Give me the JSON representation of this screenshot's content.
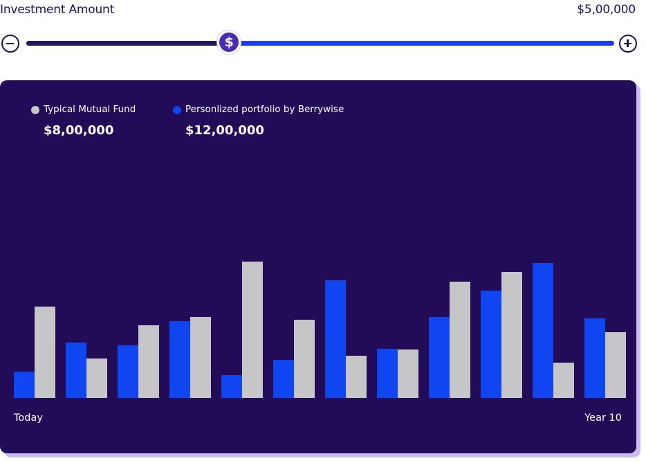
{
  "header": {
    "title": "Investment Amount",
    "amount": "$5,00,000"
  },
  "slider": {
    "thumb_symbol": "$",
    "position_fraction": 0.345,
    "fill_color": "#23175a",
    "track_color": "#1b3df0",
    "thumb_color": "#4b2bb3"
  },
  "legend": {
    "typical": {
      "label": "Typical Mutual Fund",
      "value": "$8,00,000",
      "color": "#c6c5c8"
    },
    "personalized": {
      "label": "Personlized portfolio by Berrywise",
      "value": "$12,00,000",
      "color": "#0f46f2"
    }
  },
  "chart_data": {
    "type": "bar",
    "categories": [
      "",
      "",
      "",
      "",
      "",
      "",
      "",
      "",
      "",
      "",
      "",
      ""
    ],
    "series": [
      {
        "name": "Personlized portfolio by Berrywise",
        "values": [
          38,
          80,
          76,
          111,
          33,
          55,
          170,
          71,
          117,
          155,
          195,
          115
        ]
      },
      {
        "name": "Typical Mutual Fund",
        "values": [
          132,
          57,
          105,
          117,
          197,
          113,
          61,
          70,
          168,
          182,
          51,
          95
        ]
      }
    ],
    "ylim": [
      0,
      200
    ],
    "grid": false,
    "x_start_label": "Today",
    "x_end_label": "Year 10"
  }
}
